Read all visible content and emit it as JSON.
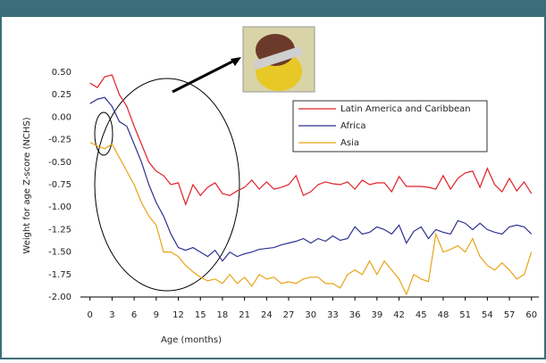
{
  "chart_data": {
    "type": "line",
    "x": [
      0,
      1,
      2,
      3,
      4,
      5,
      6,
      7,
      8,
      9,
      10,
      11,
      12,
      13,
      14,
      15,
      16,
      17,
      18,
      19,
      20,
      21,
      22,
      23,
      24,
      25,
      26,
      27,
      28,
      29,
      30,
      31,
      32,
      33,
      34,
      35,
      36,
      37,
      38,
      39,
      40,
      41,
      42,
      43,
      44,
      45,
      46,
      47,
      48,
      49,
      50,
      51,
      52,
      53,
      54,
      55,
      56,
      57,
      58,
      59,
      60
    ],
    "series": [
      {
        "name": "Latin America and Caribbean",
        "color": "#e0202a",
        "values": [
          0.38,
          0.33,
          0.45,
          0.47,
          0.25,
          0.12,
          -0.1,
          -0.3,
          -0.5,
          -0.6,
          -0.65,
          -0.75,
          -0.73,
          -0.97,
          -0.75,
          -0.87,
          -0.78,
          -0.73,
          -0.85,
          -0.87,
          -0.82,
          -0.78,
          -0.7,
          -0.8,
          -0.72,
          -0.8,
          -0.78,
          -0.75,
          -0.65,
          -0.87,
          -0.83,
          -0.75,
          -0.72,
          -0.74,
          -0.75,
          -0.72,
          -0.8,
          -0.7,
          -0.75,
          -0.73,
          -0.73,
          -0.83,
          -0.66,
          -0.77,
          -0.77,
          -0.77,
          -0.78,
          -0.8,
          -0.65,
          -0.8,
          -0.68,
          -0.62,
          -0.6,
          -0.78,
          -0.57,
          -0.75,
          -0.83,
          -0.68,
          -0.82,
          -0.72,
          -0.85
        ]
      },
      {
        "name": "Africa",
        "color": "#2e3192",
        "values": [
          0.15,
          0.2,
          0.22,
          0.12,
          -0.05,
          -0.1,
          -0.3,
          -0.5,
          -0.75,
          -0.95,
          -1.1,
          -1.3,
          -1.45,
          -1.48,
          -1.45,
          -1.5,
          -1.55,
          -1.48,
          -1.6,
          -1.5,
          -1.55,
          -1.52,
          -1.5,
          -1.47,
          -1.46,
          -1.45,
          -1.42,
          -1.4,
          -1.38,
          -1.35,
          -1.4,
          -1.35,
          -1.38,
          -1.32,
          -1.37,
          -1.35,
          -1.22,
          -1.3,
          -1.28,
          -1.22,
          -1.25,
          -1.3,
          -1.2,
          -1.4,
          -1.27,
          -1.22,
          -1.35,
          -1.25,
          -1.28,
          -1.3,
          -1.15,
          -1.18,
          -1.25,
          -1.18,
          -1.25,
          -1.28,
          -1.3,
          -1.22,
          -1.2,
          -1.22,
          -1.3
        ]
      },
      {
        "name": "Asia",
        "color": "#e8a317",
        "values": [
          -0.28,
          -0.32,
          -0.35,
          -0.3,
          -0.45,
          -0.6,
          -0.75,
          -0.95,
          -1.1,
          -1.2,
          -1.5,
          -1.5,
          -1.55,
          -1.65,
          -1.72,
          -1.78,
          -1.82,
          -1.8,
          -1.85,
          -1.75,
          -1.85,
          -1.78,
          -1.88,
          -1.75,
          -1.8,
          -1.78,
          -1.85,
          -1.83,
          -1.85,
          -1.8,
          -1.78,
          -1.78,
          -1.85,
          -1.85,
          -1.9,
          -1.75,
          -1.7,
          -1.75,
          -1.6,
          -1.75,
          -1.6,
          -1.7,
          -1.8,
          -1.97,
          -1.75,
          -1.8,
          -1.83,
          -1.3,
          -1.5,
          -1.47,
          -1.43,
          -1.5,
          -1.35,
          -1.55,
          -1.65,
          -1.7,
          -1.62,
          -1.7,
          -1.8,
          -1.75,
          -1.5
        ]
      }
    ],
    "xlim": [
      -1.3,
      61
    ],
    "xticks": [
      0,
      3,
      6,
      9,
      12,
      15,
      18,
      21,
      24,
      27,
      30,
      33,
      36,
      39,
      42,
      45,
      48,
      51,
      54,
      57,
      60
    ],
    "ylim": [
      -2,
      0.5
    ],
    "yticks": [
      {
        "value": 0.5,
        "label": "0.50"
      },
      {
        "value": 0.25,
        "label": "0.25"
      },
      {
        "value": 0,
        "label": "0.00"
      },
      {
        "value": -0.25,
        "label": "-0.25"
      },
      {
        "value": -0.5,
        "label": "-0.50"
      },
      {
        "value": -0.75,
        "label": "-0.75"
      },
      {
        "value": -1,
        "label": "-1.00"
      },
      {
        "value": -1.25,
        "label": "-1.25"
      },
      {
        "value": -1.5,
        "label": "-1.50"
      },
      {
        "value": -1.75,
        "label": "-1.75"
      },
      {
        "value": -2,
        "label": "-2.00"
      }
    ],
    "xlabel": "Age (months)",
    "ylabel": "Weight for age Z-score (NCHS)",
    "grid": false
  }
}
